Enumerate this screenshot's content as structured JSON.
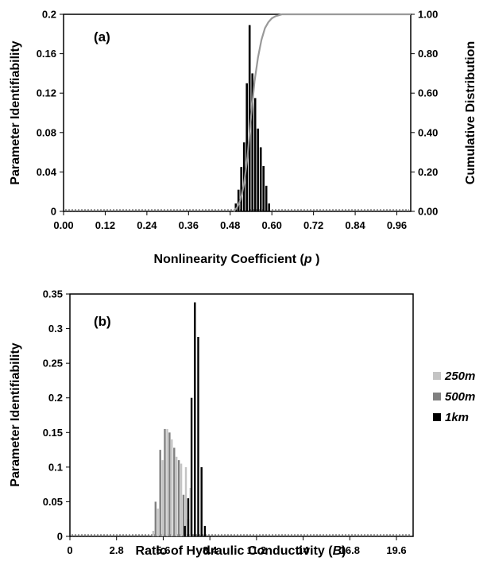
{
  "chart_data": [
    {
      "type": "bar",
      "panel_label": "(a)",
      "xlabel": "Nonlinearity Coefficient (",
      "xlabel_var": "p",
      "xlabel_end": " )",
      "ylabel": "Parameter Identifiability",
      "y2label": "Cumulative Distribution",
      "xlim": [
        0,
        1.0
      ],
      "ylim": [
        0,
        0.2
      ],
      "y2lim": [
        0,
        1.0
      ],
      "x_ticks": [
        "0.00",
        "0.12",
        "0.24",
        "0.36",
        "0.48",
        "0.60",
        "0.72",
        "0.84",
        "0.96"
      ],
      "x_tick_values": [
        0,
        0.12,
        0.24,
        0.36,
        0.48,
        0.6,
        0.72,
        0.84,
        0.96
      ],
      "y_ticks": [
        "0",
        "0.04",
        "0.08",
        "0.12",
        "0.16",
        "0.2"
      ],
      "y_tick_values": [
        0,
        0.04,
        0.08,
        0.12,
        0.16,
        0.2
      ],
      "y2_ticks": [
        "0.00",
        "0.20",
        "0.40",
        "0.60",
        "0.80",
        "1.00"
      ],
      "y2_tick_values": [
        0,
        0.2,
        0.4,
        0.6,
        0.8,
        1.0
      ],
      "grid": false,
      "series": [
        {
          "color": "#000000",
          "x": [
            0.496,
            0.504,
            0.512,
            0.52,
            0.528,
            0.536,
            0.544,
            0.552,
            0.56,
            0.568,
            0.576,
            0.584,
            0.592
          ],
          "values": [
            0.008,
            0.022,
            0.045,
            0.07,
            0.13,
            0.189,
            0.14,
            0.115,
            0.084,
            0.065,
            0.046,
            0.026,
            0.008
          ]
        },
        {
          "type": "line",
          "axis": "right",
          "color": "#999999",
          "x": [
            0.49,
            0.5,
            0.51,
            0.52,
            0.53,
            0.54,
            0.55,
            0.56,
            0.57,
            0.58,
            0.59,
            0.6,
            0.61,
            0.62,
            0.63,
            0.64,
            1.0
          ],
          "values": [
            0.0,
            0.02,
            0.06,
            0.14,
            0.28,
            0.48,
            0.66,
            0.78,
            0.87,
            0.93,
            0.96,
            0.98,
            0.99,
            0.995,
            1.0,
            1.0,
            1.0
          ]
        }
      ]
    },
    {
      "type": "bar",
      "panel_label": "(b)",
      "xlabel": "Ratio of Hydraulic Conductivity (",
      "xlabel_var": "B",
      "xlabel_end": ")",
      "ylabel": "Parameter Identifiability",
      "xlim": [
        0,
        20.6
      ],
      "ylim": [
        0,
        0.35
      ],
      "x_ticks": [
        "0",
        "2.8",
        "5.6",
        "8.4",
        "11.2",
        "14",
        "16.8",
        "19.6"
      ],
      "x_tick_values": [
        0,
        2.8,
        5.6,
        8.4,
        11.2,
        14,
        16.8,
        19.6
      ],
      "y_ticks": [
        "0",
        "0.05",
        "0.1",
        "0.15",
        "0.2",
        "0.25",
        "0.3",
        "0.35"
      ],
      "y_tick_values": [
        0,
        0.05,
        0.1,
        0.15,
        0.2,
        0.25,
        0.3,
        0.35
      ],
      "legend": "right",
      "grid": false,
      "series": [
        {
          "name": "250m",
          "color": "#c4c4c4",
          "x": [
            5.0,
            5.28,
            5.56,
            5.84,
            6.12,
            6.4,
            6.68,
            6.96,
            7.24
          ],
          "values": [
            0.008,
            0.04,
            0.11,
            0.155,
            0.14,
            0.115,
            0.105,
            0.1,
            0.07
          ]
        },
        {
          "name": "500m",
          "color": "#808080",
          "x": [
            5.14,
            5.42,
            5.7,
            5.98,
            6.26,
            6.54,
            6.82,
            7.1
          ],
          "values": [
            0.05,
            0.125,
            0.155,
            0.15,
            0.128,
            0.11,
            0.06,
            0.025
          ]
        },
        {
          "name": "1km",
          "color": "#000000",
          "x": [
            6.9,
            7.1,
            7.3,
            7.5,
            7.7,
            7.9,
            8.1
          ],
          "values": [
            0.015,
            0.055,
            0.2,
            0.338,
            0.288,
            0.1,
            0.015
          ]
        }
      ]
    }
  ]
}
